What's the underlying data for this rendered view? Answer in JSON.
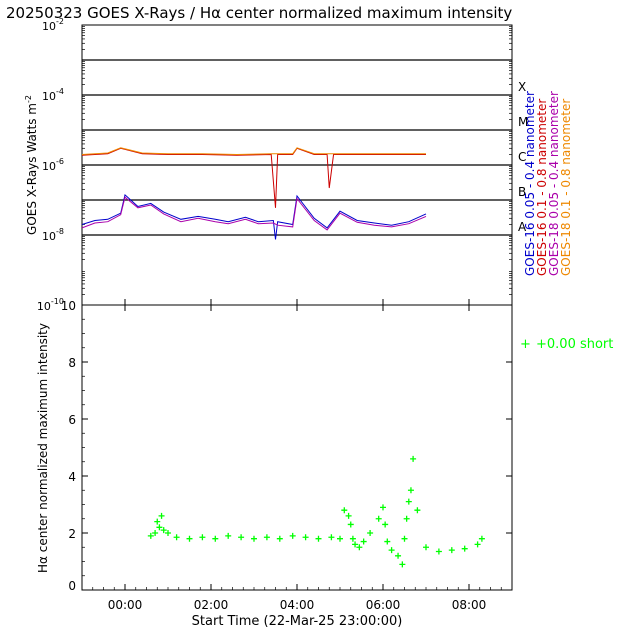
{
  "title": "20250323 GOES X-Rays / Hα center normalized maximum intensity",
  "chart_data": [
    {
      "type": "line",
      "ylabel": "GOES X-Rays Watts m",
      "ylabel_sup": "-2",
      "yscale": "log",
      "ylim_exp": [
        -10,
        -2
      ],
      "y_tick_mantissa": "10",
      "y_tick_exponents": [
        "-10",
        "-8",
        "-6",
        "-4",
        "-2"
      ],
      "grid_exponents": [
        -8,
        -7,
        -6,
        -5,
        -4,
        -3
      ],
      "flare_classes": [
        {
          "label": "A",
          "exp": -8
        },
        {
          "label": "B",
          "exp": -7
        },
        {
          "label": "C",
          "exp": -6
        },
        {
          "label": "M",
          "exp": -5
        },
        {
          "label": "X",
          "exp": -4
        }
      ],
      "series": [
        {
          "name": "GOES-16 0.05 - 0.4 nanometer",
          "color": "#0000cc",
          "x": [
            0,
            0.3,
            0.6,
            0.9,
            1.0,
            1.3,
            1.6,
            1.9,
            2.3,
            2.7,
            3.1,
            3.4,
            3.8,
            4.1,
            4.45,
            4.5,
            4.55,
            4.9,
            5.0,
            5.4,
            5.7,
            6.0,
            6.4,
            6.8,
            7.2,
            7.6,
            8.0
          ],
          "y": [
            2e-08,
            2.6e-08,
            2.8e-08,
            4.2e-08,
            1.4e-07,
            6.5e-08,
            8e-08,
            4.5e-08,
            2.8e-08,
            3.4e-08,
            2.8e-08,
            2.4e-08,
            3.2e-08,
            2.4e-08,
            2.6e-08,
            7.5e-09,
            2.4e-08,
            2e-08,
            1.3e-07,
            3e-08,
            1.6e-08,
            4.8e-08,
            2.6e-08,
            2.2e-08,
            1.9e-08,
            2.4e-08,
            4e-08
          ]
        },
        {
          "name": "GOES-16 0.1 - 0.8 nanometer",
          "color": "#cc0000",
          "x": [
            0,
            0.6,
            0.9,
            1.4,
            2.0,
            2.8,
            3.6,
            4.4,
            4.5,
            4.55,
            4.9,
            5.0,
            5.4,
            5.7,
            5.75,
            5.85,
            6.4,
            7.2,
            8.0
          ],
          "y": [
            1.9e-06,
            2.1e-06,
            3e-06,
            2.1e-06,
            2e-06,
            2e-06,
            1.9e-06,
            2e-06,
            6e-08,
            2e-06,
            2e-06,
            3e-06,
            2e-06,
            2e-06,
            2.2e-07,
            2e-06,
            2e-06,
            2e-06,
            2e-06
          ]
        },
        {
          "name": "GOES-18 0.05 - 0.4 nanometer",
          "color": "#aa00aa",
          "x": [
            0,
            0.3,
            0.6,
            0.9,
            1.0,
            1.3,
            1.6,
            1.9,
            2.3,
            2.7,
            3.1,
            3.4,
            3.8,
            4.1,
            4.45,
            4.55,
            4.9,
            5.0,
            5.4,
            5.7,
            6.0,
            6.4,
            6.8,
            7.2,
            7.6,
            8.0
          ],
          "y": [
            1.6e-08,
            2.2e-08,
            2.4e-08,
            3.8e-08,
            1.2e-07,
            6e-08,
            7.2e-08,
            4e-08,
            2.4e-08,
            3e-08,
            2.4e-08,
            2.1e-08,
            2.8e-08,
            2.1e-08,
            2.2e-08,
            1.9e-08,
            1.7e-08,
            1.1e-07,
            2.6e-08,
            1.4e-08,
            4.2e-08,
            2.3e-08,
            1.9e-08,
            1.7e-08,
            2.1e-08,
            3.4e-08
          ]
        },
        {
          "name": "GOES-18 0.1 - 0.8 nanometer",
          "color": "#ee8800",
          "x": [
            0,
            0.6,
            0.9,
            1.4,
            2.0,
            2.8,
            3.6,
            4.4,
            4.9,
            5.0,
            5.4,
            6.4,
            7.2,
            8.0
          ],
          "y": [
            2e-06,
            2.2e-06,
            3.1e-06,
            2.2e-06,
            2.1e-06,
            2.1e-06,
            2e-06,
            2.1e-06,
            2.1e-06,
            3.1e-06,
            2.1e-06,
            2.1e-06,
            2.1e-06,
            2.1e-06
          ]
        }
      ]
    },
    {
      "type": "scatter",
      "ylabel": "Hα center normalized maximum intensity",
      "xlabel": "Start Time (22-Mar-25 23:00:00)",
      "ylim": [
        0,
        10
      ],
      "y_ticks": [
        "0",
        "2",
        "4",
        "6",
        "8",
        "10"
      ],
      "x_tick_labels": [
        "00:00",
        "02:00",
        "04:00",
        "06:00",
        "08:00"
      ],
      "x_ticks_hours": [
        1,
        3,
        5,
        7,
        9
      ],
      "x_range_hours": [
        0,
        10
      ],
      "legend": {
        "marker": "+",
        "text": "+0.00 short",
        "color": "#00ff00"
      },
      "series": [
        {
          "name": "+0.00 short",
          "color": "#00ff00",
          "x": [
            1.6,
            1.7,
            1.75,
            1.8,
            1.85,
            1.9,
            2.0,
            2.2,
            2.5,
            2.8,
            3.1,
            3.4,
            3.7,
            4.0,
            4.3,
            4.6,
            4.9,
            5.2,
            5.5,
            5.8,
            6.0,
            6.1,
            6.2,
            6.25,
            6.3,
            6.35,
            6.45,
            6.55,
            6.7,
            6.9,
            7.0,
            7.05,
            7.1,
            7.2,
            7.35,
            7.45,
            7.5,
            7.55,
            7.6,
            7.65,
            7.7,
            7.8,
            8.0,
            8.3,
            8.6,
            8.9,
            9.2,
            9.3
          ],
          "y": [
            1.9,
            2.0,
            2.4,
            2.2,
            2.6,
            2.1,
            2.0,
            1.85,
            1.8,
            1.85,
            1.8,
            1.9,
            1.85,
            1.8,
            1.85,
            1.8,
            1.9,
            1.85,
            1.8,
            1.85,
            1.8,
            2.8,
            2.6,
            2.3,
            1.8,
            1.6,
            1.5,
            1.7,
            2.0,
            2.5,
            2.9,
            2.3,
            1.7,
            1.4,
            1.2,
            0.9,
            1.8,
            2.5,
            3.1,
            3.5,
            4.6,
            2.8,
            1.5,
            1.35,
            1.4,
            1.45,
            1.6,
            1.8
          ]
        }
      ]
    }
  ]
}
